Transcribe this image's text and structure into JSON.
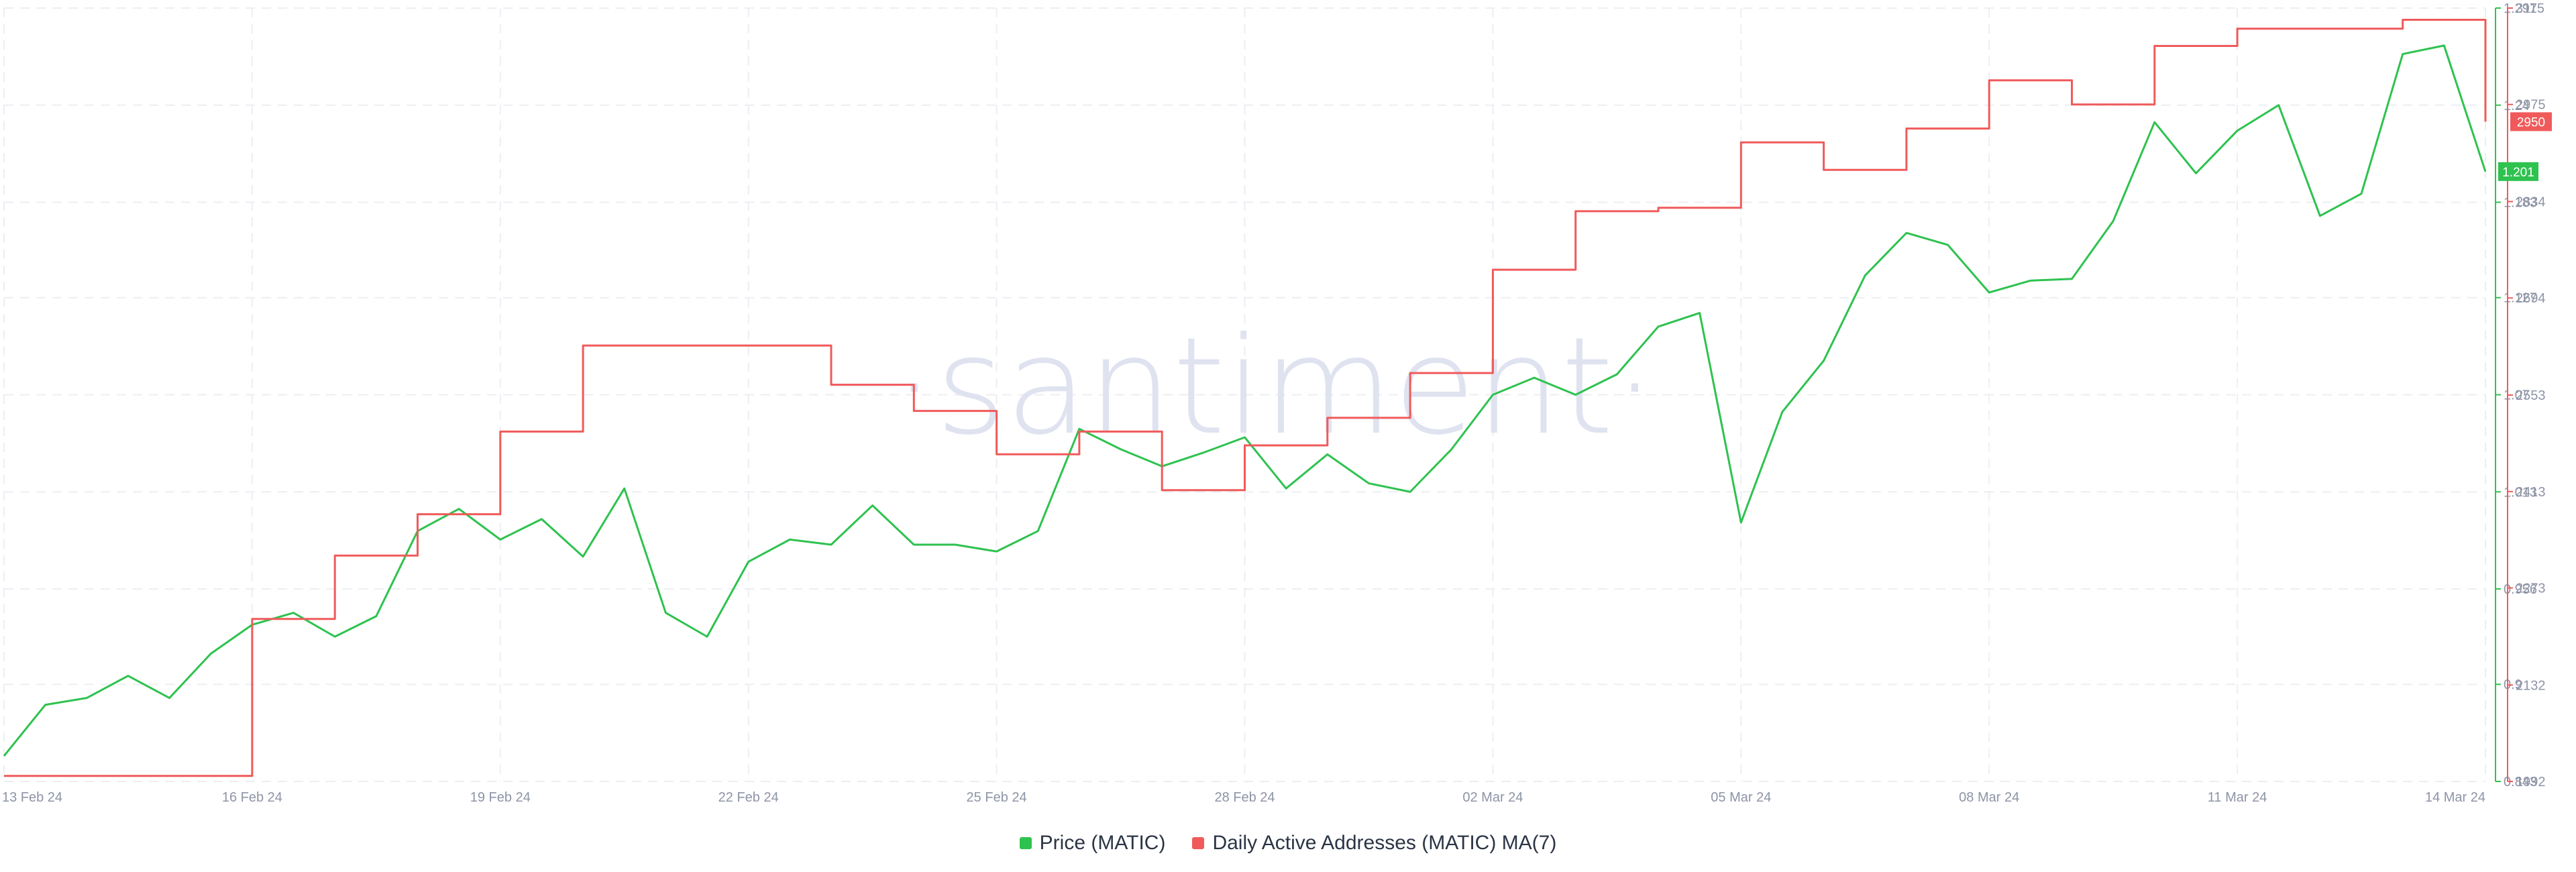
{
  "watermark": "·santiment·",
  "chart_data": {
    "type": "line",
    "title": "",
    "x_ticks": [
      "13 Feb 24",
      "16 Feb 24",
      "19 Feb 24",
      "22 Feb 24",
      "25 Feb 24",
      "28 Feb 24",
      "02 Mar 24",
      "05 Mar 24",
      "08 Mar 24",
      "11 Mar 24",
      "14 Mar 24"
    ],
    "xlim": [
      "2024-02-13",
      "2024-03-14"
    ],
    "grid": true,
    "legend_position": "bottom",
    "axes": {
      "price": {
        "side": "right",
        "color": "#2ec24f",
        "ylim": [
          0.843,
          1.297
        ],
        "ticks": [
          "1.297",
          "1.24",
          "1.183",
          "1.127",
          "1.07",
          "1.013",
          "0.956",
          "0.9",
          "0.843"
        ],
        "current_label": "1.201",
        "current_value": 1.201
      },
      "addresses": {
        "side": "right",
        "color": "#f05a5a",
        "ylim": [
          1992,
          3115
        ],
        "ticks": [
          "3115",
          "2975",
          "2834",
          "2694",
          "2553",
          "2413",
          "2273",
          "2132",
          "1992"
        ],
        "current_label": "2950",
        "current_value": 2950
      }
    },
    "series": [
      {
        "name": "Price (MATIC)",
        "axis": "price",
        "color": "#2ec24f",
        "points": [
          [
            "2024-02-13",
            0.858
          ],
          [
            "2024-02-13T12:00",
            0.888
          ],
          [
            "2024-02-14",
            0.892
          ],
          [
            "2024-02-14T12:00",
            0.905
          ],
          [
            "2024-02-15",
            0.892
          ],
          [
            "2024-02-15T12:00",
            0.918
          ],
          [
            "2024-02-16",
            0.935
          ],
          [
            "2024-02-16T12:00",
            0.942
          ],
          [
            "2024-02-17",
            0.928
          ],
          [
            "2024-02-17T12:00",
            0.94
          ],
          [
            "2024-02-18",
            0.99
          ],
          [
            "2024-02-18T12:00",
            1.003
          ],
          [
            "2024-02-19",
            0.985
          ],
          [
            "2024-02-19T12:00",
            0.997
          ],
          [
            "2024-02-20",
            0.975
          ],
          [
            "2024-02-20T12:00",
            1.015
          ],
          [
            "2024-02-21",
            0.942
          ],
          [
            "2024-02-21T12:00",
            0.928
          ],
          [
            "2024-02-22",
            0.972
          ],
          [
            "2024-02-22T12:00",
            0.985
          ],
          [
            "2024-02-23",
            0.982
          ],
          [
            "2024-02-23T12:00",
            1.005
          ],
          [
            "2024-02-24",
            0.982
          ],
          [
            "2024-02-24T12:00",
            0.982
          ],
          [
            "2024-02-25",
            0.978
          ],
          [
            "2024-02-25T12:00",
            0.99
          ],
          [
            "2024-02-26",
            1.05
          ],
          [
            "2024-02-26T12:00",
            1.038
          ],
          [
            "2024-02-27",
            1.028
          ],
          [
            "2024-02-27T12:00",
            1.036
          ],
          [
            "2024-02-28",
            1.045
          ],
          [
            "2024-02-28T12:00",
            1.015
          ],
          [
            "2024-02-29",
            1.035
          ],
          [
            "2024-02-29T12:00",
            1.018
          ],
          [
            "2024-03-01",
            1.013
          ],
          [
            "2024-03-01T12:00",
            1.038
          ],
          [
            "2024-03-02",
            1.07
          ],
          [
            "2024-03-02T12:00",
            1.08
          ],
          [
            "2024-03-03",
            1.07
          ],
          [
            "2024-03-03T12:00",
            1.082
          ],
          [
            "2024-03-04",
            1.11
          ],
          [
            "2024-03-04T12:00",
            1.118
          ],
          [
            "2024-03-05",
            0.995
          ],
          [
            "2024-03-05T12:00",
            1.06
          ],
          [
            "2024-03-06",
            1.09
          ],
          [
            "2024-03-06T12:00",
            1.14
          ],
          [
            "2024-03-07",
            1.165
          ],
          [
            "2024-03-07T12:00",
            1.158
          ],
          [
            "2024-03-08",
            1.13
          ],
          [
            "2024-03-08T12:00",
            1.137
          ],
          [
            "2024-03-09",
            1.138
          ],
          [
            "2024-03-09T12:00",
            1.172
          ],
          [
            "2024-03-10",
            1.23
          ],
          [
            "2024-03-10T12:00",
            1.2
          ],
          [
            "2024-03-11",
            1.225
          ],
          [
            "2024-03-11T12:00",
            1.24
          ],
          [
            "2024-03-12",
            1.175
          ],
          [
            "2024-03-12T12:00",
            1.188
          ],
          [
            "2024-03-13",
            1.27
          ],
          [
            "2024-03-13T12:00",
            1.275
          ],
          [
            "2024-03-14",
            1.201
          ]
        ]
      },
      {
        "name": "Daily Active Addresses (MATIC) MA(7)",
        "axis": "addresses",
        "color": "#f05a5a",
        "points": [
          [
            "2024-02-13",
            2000
          ],
          [
            "2024-02-14",
            2000
          ],
          [
            "2024-02-15",
            2000
          ],
          [
            "2024-02-16",
            2228
          ],
          [
            "2024-02-17",
            2320
          ],
          [
            "2024-02-18",
            2380
          ],
          [
            "2024-02-19",
            2500
          ],
          [
            "2024-02-20",
            2625
          ],
          [
            "2024-02-21",
            2625
          ],
          [
            "2024-02-22",
            2625
          ],
          [
            "2024-02-23",
            2568
          ],
          [
            "2024-02-24",
            2530
          ],
          [
            "2024-02-25",
            2467
          ],
          [
            "2024-02-26",
            2500
          ],
          [
            "2024-02-27",
            2415
          ],
          [
            "2024-02-28",
            2480
          ],
          [
            "2024-02-29",
            2520
          ],
          [
            "2024-03-01",
            2585
          ],
          [
            "2024-03-02",
            2735
          ],
          [
            "2024-03-03",
            2820
          ],
          [
            "2024-03-04",
            2825
          ],
          [
            "2024-03-05",
            2920
          ],
          [
            "2024-03-06",
            2880
          ],
          [
            "2024-03-07",
            2940
          ],
          [
            "2024-03-08",
            3010
          ],
          [
            "2024-03-09",
            2975
          ],
          [
            "2024-03-10",
            3060
          ],
          [
            "2024-03-11",
            3085
          ],
          [
            "2024-03-12",
            3085
          ],
          [
            "2024-03-13",
            3098
          ],
          [
            "2024-03-14",
            2950
          ]
        ]
      }
    ]
  }
}
